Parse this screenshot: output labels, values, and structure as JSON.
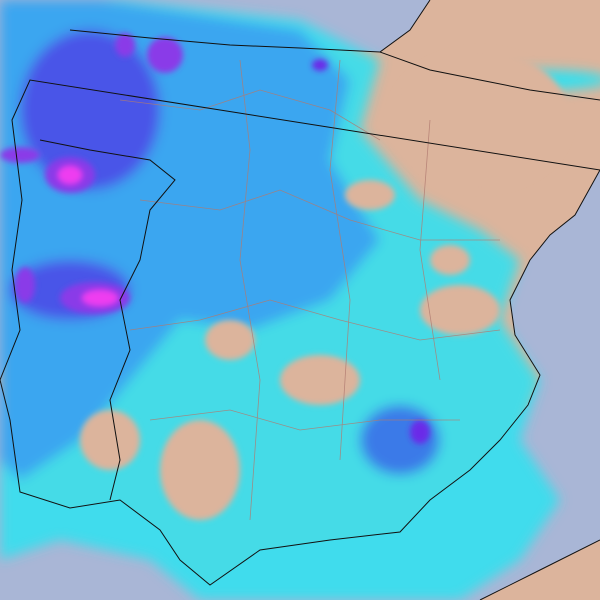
{
  "map": {
    "region": "iberian-peninsula",
    "layer": "precipitation",
    "colors": {
      "sea": "#a9b6d6",
      "land": "#dcb49c",
      "precip_light": "#35e0ef",
      "precip_medium": "#3aa6f0",
      "precip_heavy": "#4a55e8",
      "precip_very_heavy": "#8a3ae8",
      "precip_extreme": "#ee3cf0",
      "borders": "#111111",
      "admin_borders": "#b07a70"
    }
  }
}
